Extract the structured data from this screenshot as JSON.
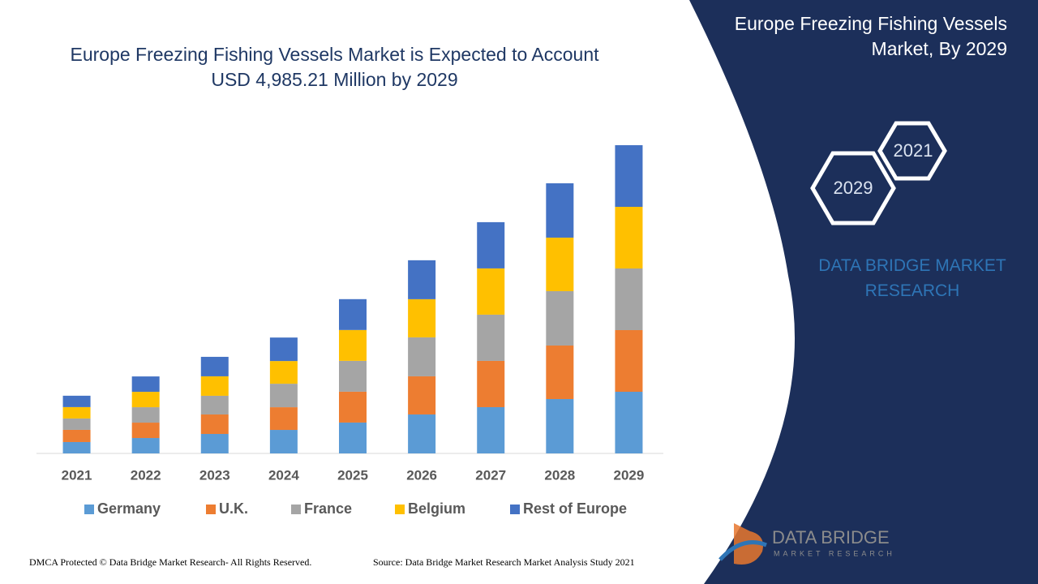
{
  "chart_data": {
    "type": "stacked-bar",
    "title": "Europe Freezing Fishing Vessels Market is Expected to Account USD 4,985.21 Million by 2029",
    "categories": [
      "2021",
      "2022",
      "2023",
      "2024",
      "2025",
      "2026",
      "2027",
      "2028",
      "2029"
    ],
    "series": [
      {
        "name": "Germany",
        "color": "#5b9bd5",
        "values": [
          184,
          249,
          315,
          380,
          499,
          630,
          748,
          879,
          997
        ]
      },
      {
        "name": "U.K.",
        "color": "#ed7d31",
        "values": [
          197,
          249,
          315,
          367,
          499,
          617,
          748,
          866,
          997
        ]
      },
      {
        "name": "France",
        "color": "#a5a5a5",
        "values": [
          184,
          249,
          302,
          380,
          499,
          630,
          748,
          879,
          997
        ]
      },
      {
        "name": "Belgium",
        "color": "#ffc000",
        "values": [
          184,
          249,
          315,
          367,
          499,
          617,
          748,
          866,
          997
        ]
      },
      {
        "name": "Rest of Europe",
        "color": "#4472c4",
        "values": [
          184,
          249,
          315,
          380,
          499,
          630,
          748,
          879,
          997
        ]
      }
    ]
  },
  "panel": {
    "title": "Europe Freezing Fishing Vessels Market, By 2029",
    "hex_start": "2021",
    "hex_end": "2029",
    "brand": "DATA BRIDGE MARKET RESEARCH"
  },
  "logo": {
    "name": "DATA BRIDGE",
    "tagline": "MARKET RESEARCH"
  },
  "footer": {
    "left": "DMCA Protected © Data Bridge Market Research- All Rights Reserved.",
    "right": "Source: Data Bridge Market Research Market Analysis Study 2021"
  }
}
